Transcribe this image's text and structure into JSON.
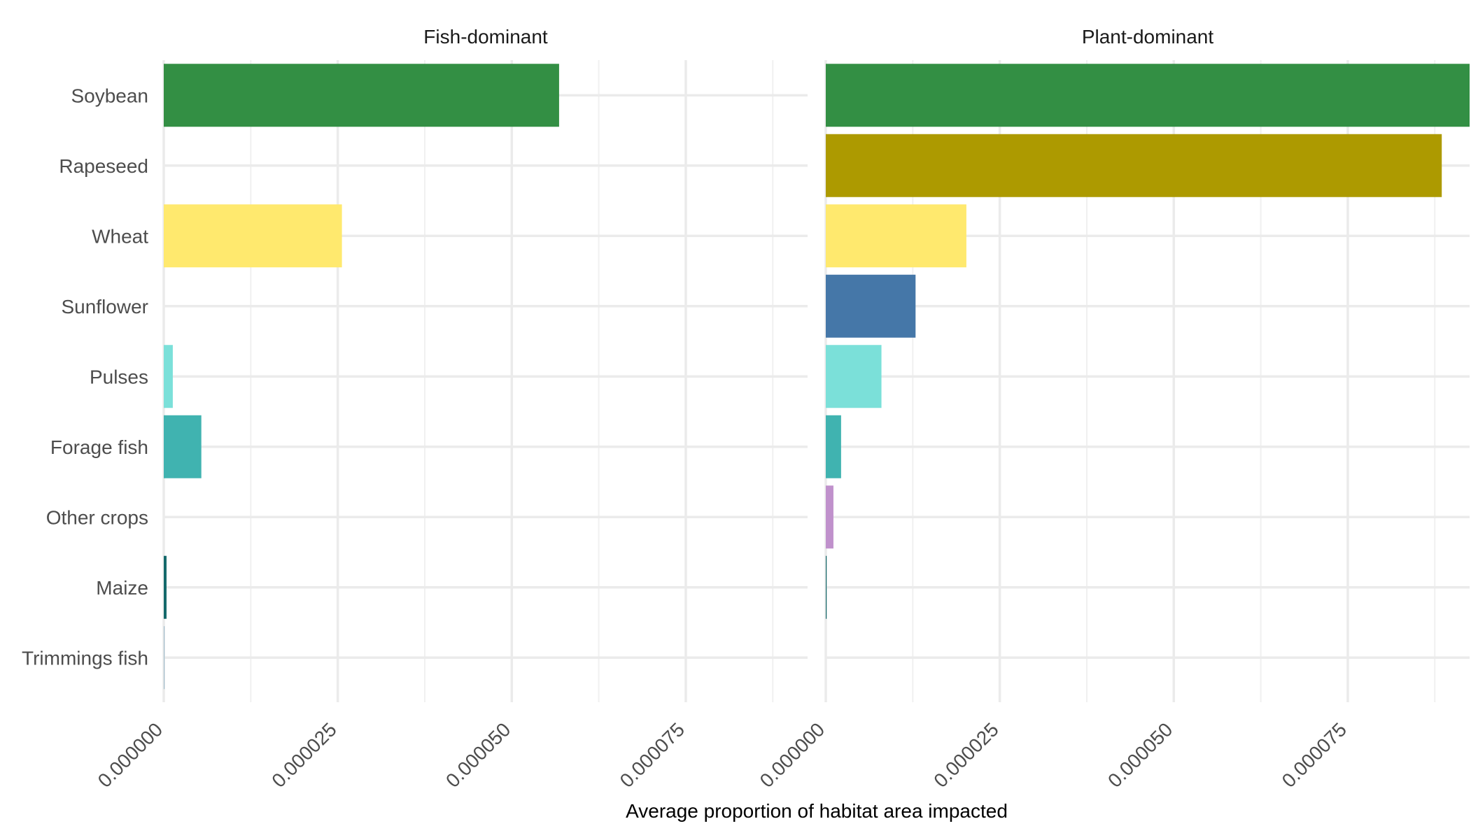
{
  "chart_data": {
    "type": "bar",
    "orientation": "horizontal",
    "xlabel": "Average proportion of habitat area impacted",
    "categories": [
      "Soybean",
      "Rapeseed",
      "Wheat",
      "Sunflower",
      "Pulses",
      "Forage fish",
      "Other crops",
      "Maize",
      "Trimmings fish"
    ],
    "colors": {
      "Soybean": "#338f44",
      "Rapeseed": "#ad9a00",
      "Wheat": "#ffe96e",
      "Sunflower": "#4577a8",
      "Pulses": "#7be0d9",
      "Forage fish": "#40b3b0",
      "Other crops": "#c091cc",
      "Maize": "#14696b",
      "Trimmings fish": "#a3bfcc"
    },
    "tick_values": [
      0,
      2.5e-05,
      5e-05,
      7.5e-05
    ],
    "tick_labels": [
      "0.000000",
      "0.000025",
      "0.000050",
      "0.000075"
    ],
    "grid": true,
    "legend": "none",
    "panels": [
      {
        "title": "Fish-dominant",
        "xlim": [
          0,
          9.25e-05
        ],
        "values": [
          5.68e-05,
          0,
          2.56e-05,
          0,
          1.3e-06,
          5.4e-06,
          0,
          4e-07,
          1e-07
        ]
      },
      {
        "title": "Plant-dominant",
        "xlim": [
          0,
          9.25e-05
        ],
        "values": [
          9.25e-05,
          8.85e-05,
          2.02e-05,
          1.29e-05,
          8e-06,
          2.2e-06,
          1.1e-06,
          1e-07,
          0
        ]
      }
    ]
  }
}
